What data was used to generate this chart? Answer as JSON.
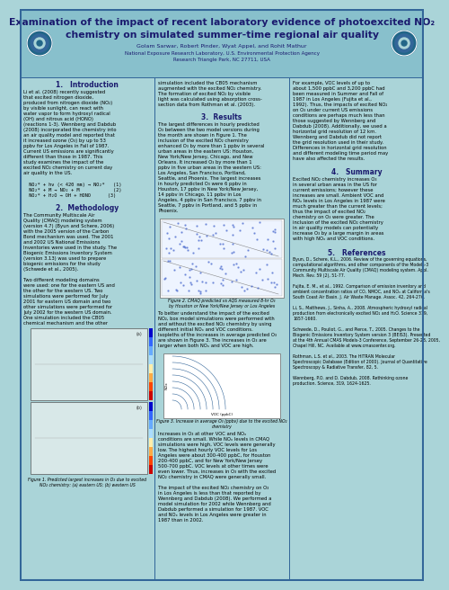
{
  "title_line1": "Examination of the impact of recent laboratory evidence of photoexcited NO₂",
  "title_line2": "chemistry on simulated summer-time regional air quality",
  "authors": "Golam Sarwar, Robert Pinder, Wyat Appel, and Rohit Mathur",
  "affiliation1": "National Exposure Research Laboratory, U.S. Environmental Protection Agency",
  "affiliation2": "Research Triangle Park, NC 27711, USA",
  "bg_color": "#aad4d8",
  "header_bg": "#88c0cc"
}
